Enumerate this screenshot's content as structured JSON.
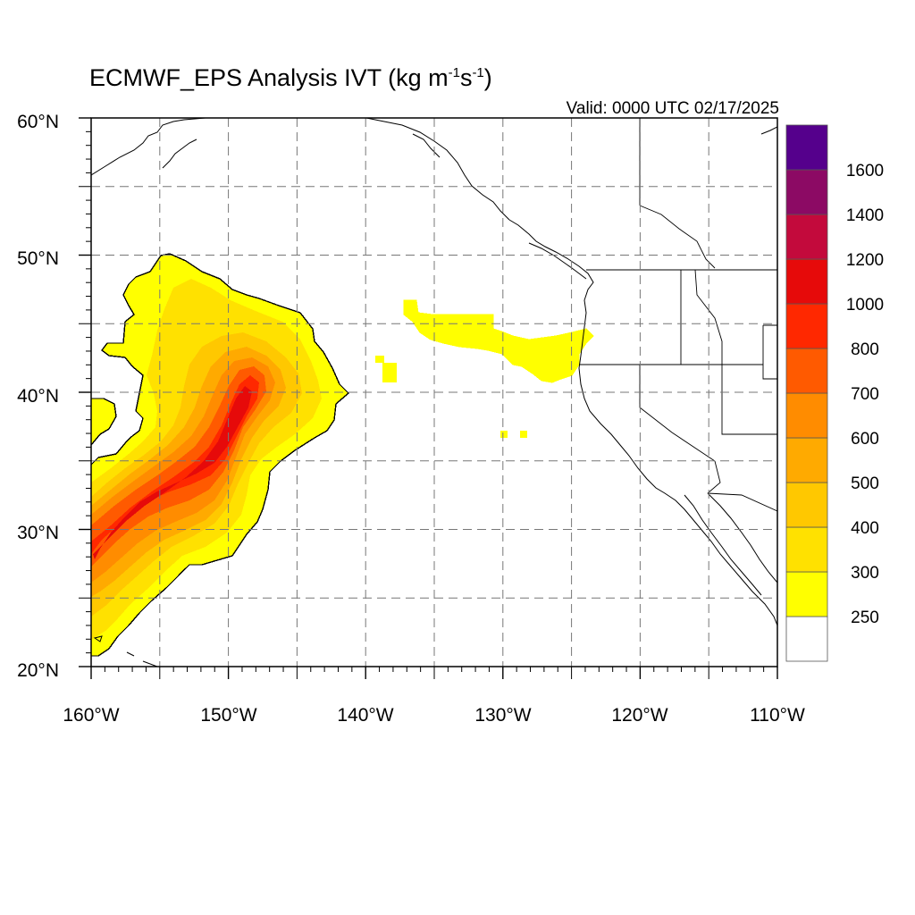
{
  "title": {
    "main": "ECMWF_EPS Analysis IVT (kg m",
    "sup1": "-1",
    "mid": "s",
    "sup2": "-1",
    "end": ")"
  },
  "valid_time": "Valid: 0000 UTC 02/17/2025",
  "map": {
    "projection": "cylindrical-equidistant",
    "lon_range": [
      -160,
      -110
    ],
    "lat_range": [
      20,
      60
    ],
    "grid": "dashed",
    "lon_ticks": [
      "160°W",
      "150°W",
      "140°W",
      "130°W",
      "120°W",
      "110°W"
    ],
    "lat_ticks": [
      "20°N",
      "30°N",
      "40°N",
      "50°N",
      "60°N"
    ]
  },
  "colorbar": {
    "orientation": "vertical",
    "placement": "right",
    "labels": [
      "250",
      "300",
      "400",
      "500",
      "600",
      "700",
      "800",
      "1000",
      "1200",
      "1400",
      "1600"
    ],
    "colors": [
      "#ffffff",
      "#ffff00",
      "#ffe100",
      "#ffc800",
      "#ffaa00",
      "#ff8c00",
      "#ff5a00",
      "#ff2800",
      "#e60a0a",
      "#c30a3c",
      "#8c0a64",
      "#55008c"
    ]
  },
  "colors": {
    "coastline": "#000000",
    "grid": "#777777",
    "background": "#ffffff"
  }
}
